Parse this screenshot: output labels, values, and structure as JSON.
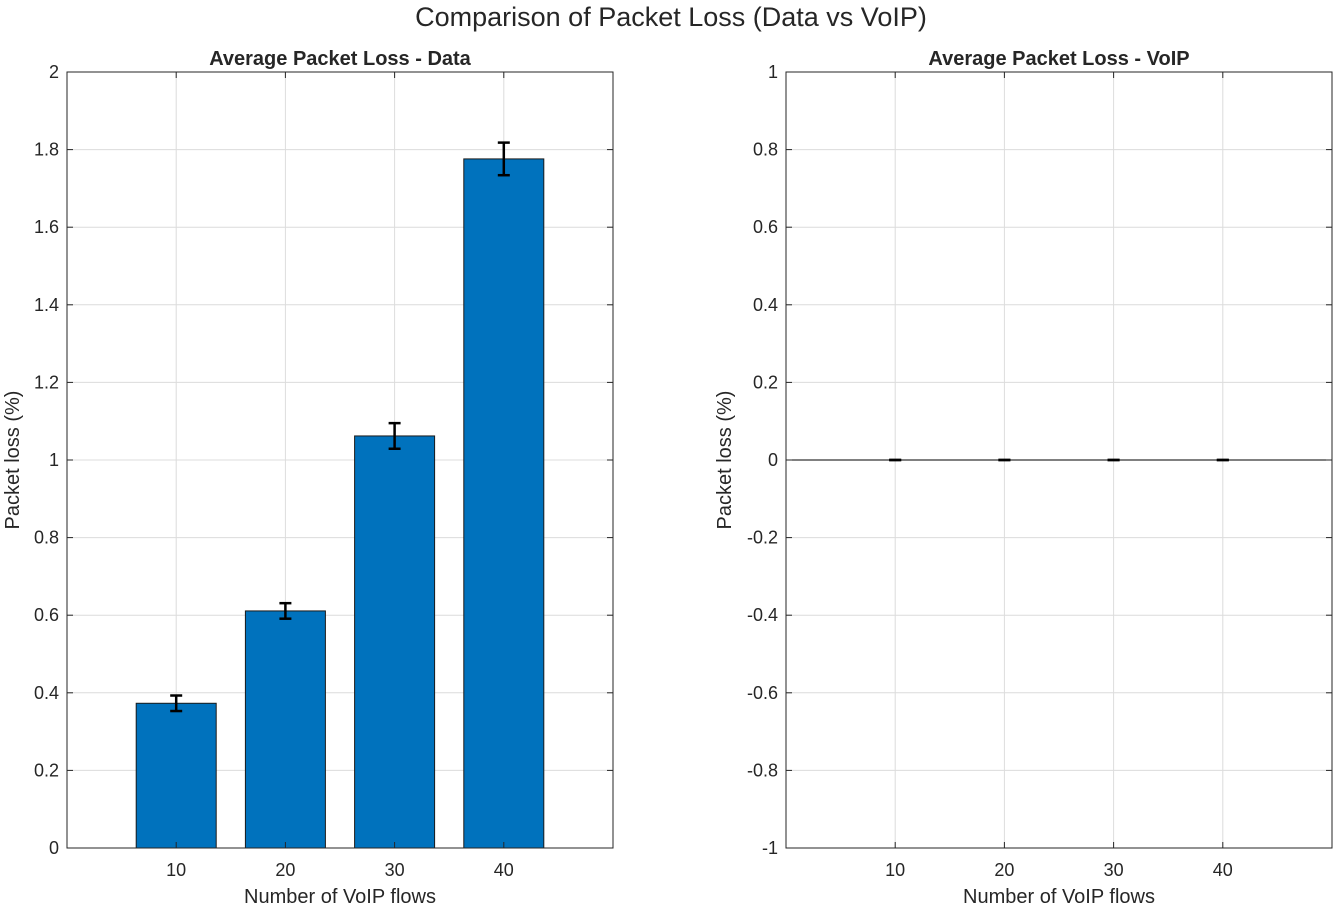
{
  "figure": {
    "title": "Comparison of Packet Loss (Data vs VoIP)"
  },
  "colors": {
    "bar": "#0072BD",
    "bar_edge": "#1a1a1a",
    "grid": "#dcdcdc",
    "axis": "#262626",
    "errorbar": "#000000"
  },
  "chart_data": [
    {
      "type": "bar",
      "title": "Average Packet Loss - Data",
      "xlabel": "Number of VoIP flows",
      "ylabel": "Packet loss (%)",
      "categories": [
        "10",
        "20",
        "30",
        "40"
      ],
      "x": [
        10,
        20,
        30,
        40
      ],
      "values": [
        0.373,
        0.611,
        1.062,
        1.776
      ],
      "error": [
        0.02,
        0.02,
        0.033,
        0.042
      ],
      "xlim": [
        0,
        50
      ],
      "ylim": [
        0,
        2
      ],
      "yticks": [
        0,
        0.2,
        0.4,
        0.6,
        0.8,
        1,
        1.2,
        1.4,
        1.6,
        1.8,
        2
      ],
      "ytick_labels": [
        "0",
        "0.2",
        "0.4",
        "0.6",
        "0.8",
        "1",
        "1.2",
        "1.4",
        "1.6",
        "1.8",
        "2"
      ],
      "grid": true,
      "legend": "none"
    },
    {
      "type": "bar",
      "title": "Average Packet Loss - VoIP",
      "xlabel": "Number of VoIP flows",
      "ylabel": "Packet loss (%)",
      "categories": [
        "10",
        "20",
        "30",
        "40"
      ],
      "x": [
        10,
        20,
        30,
        40
      ],
      "values": [
        0,
        0,
        0,
        0
      ],
      "error": [
        0,
        0,
        0,
        0
      ],
      "xlim": [
        0,
        50
      ],
      "ylim": [
        -1,
        1
      ],
      "yticks": [
        -1,
        -0.8,
        -0.6,
        -0.4,
        -0.2,
        0,
        0.2,
        0.4,
        0.6,
        0.8,
        1
      ],
      "ytick_labels": [
        "-1",
        "-0.8",
        "-0.6",
        "-0.4",
        "-0.2",
        "0",
        "0.2",
        "0.4",
        "0.6",
        "0.8",
        "1"
      ],
      "grid": true,
      "legend": "none"
    }
  ]
}
